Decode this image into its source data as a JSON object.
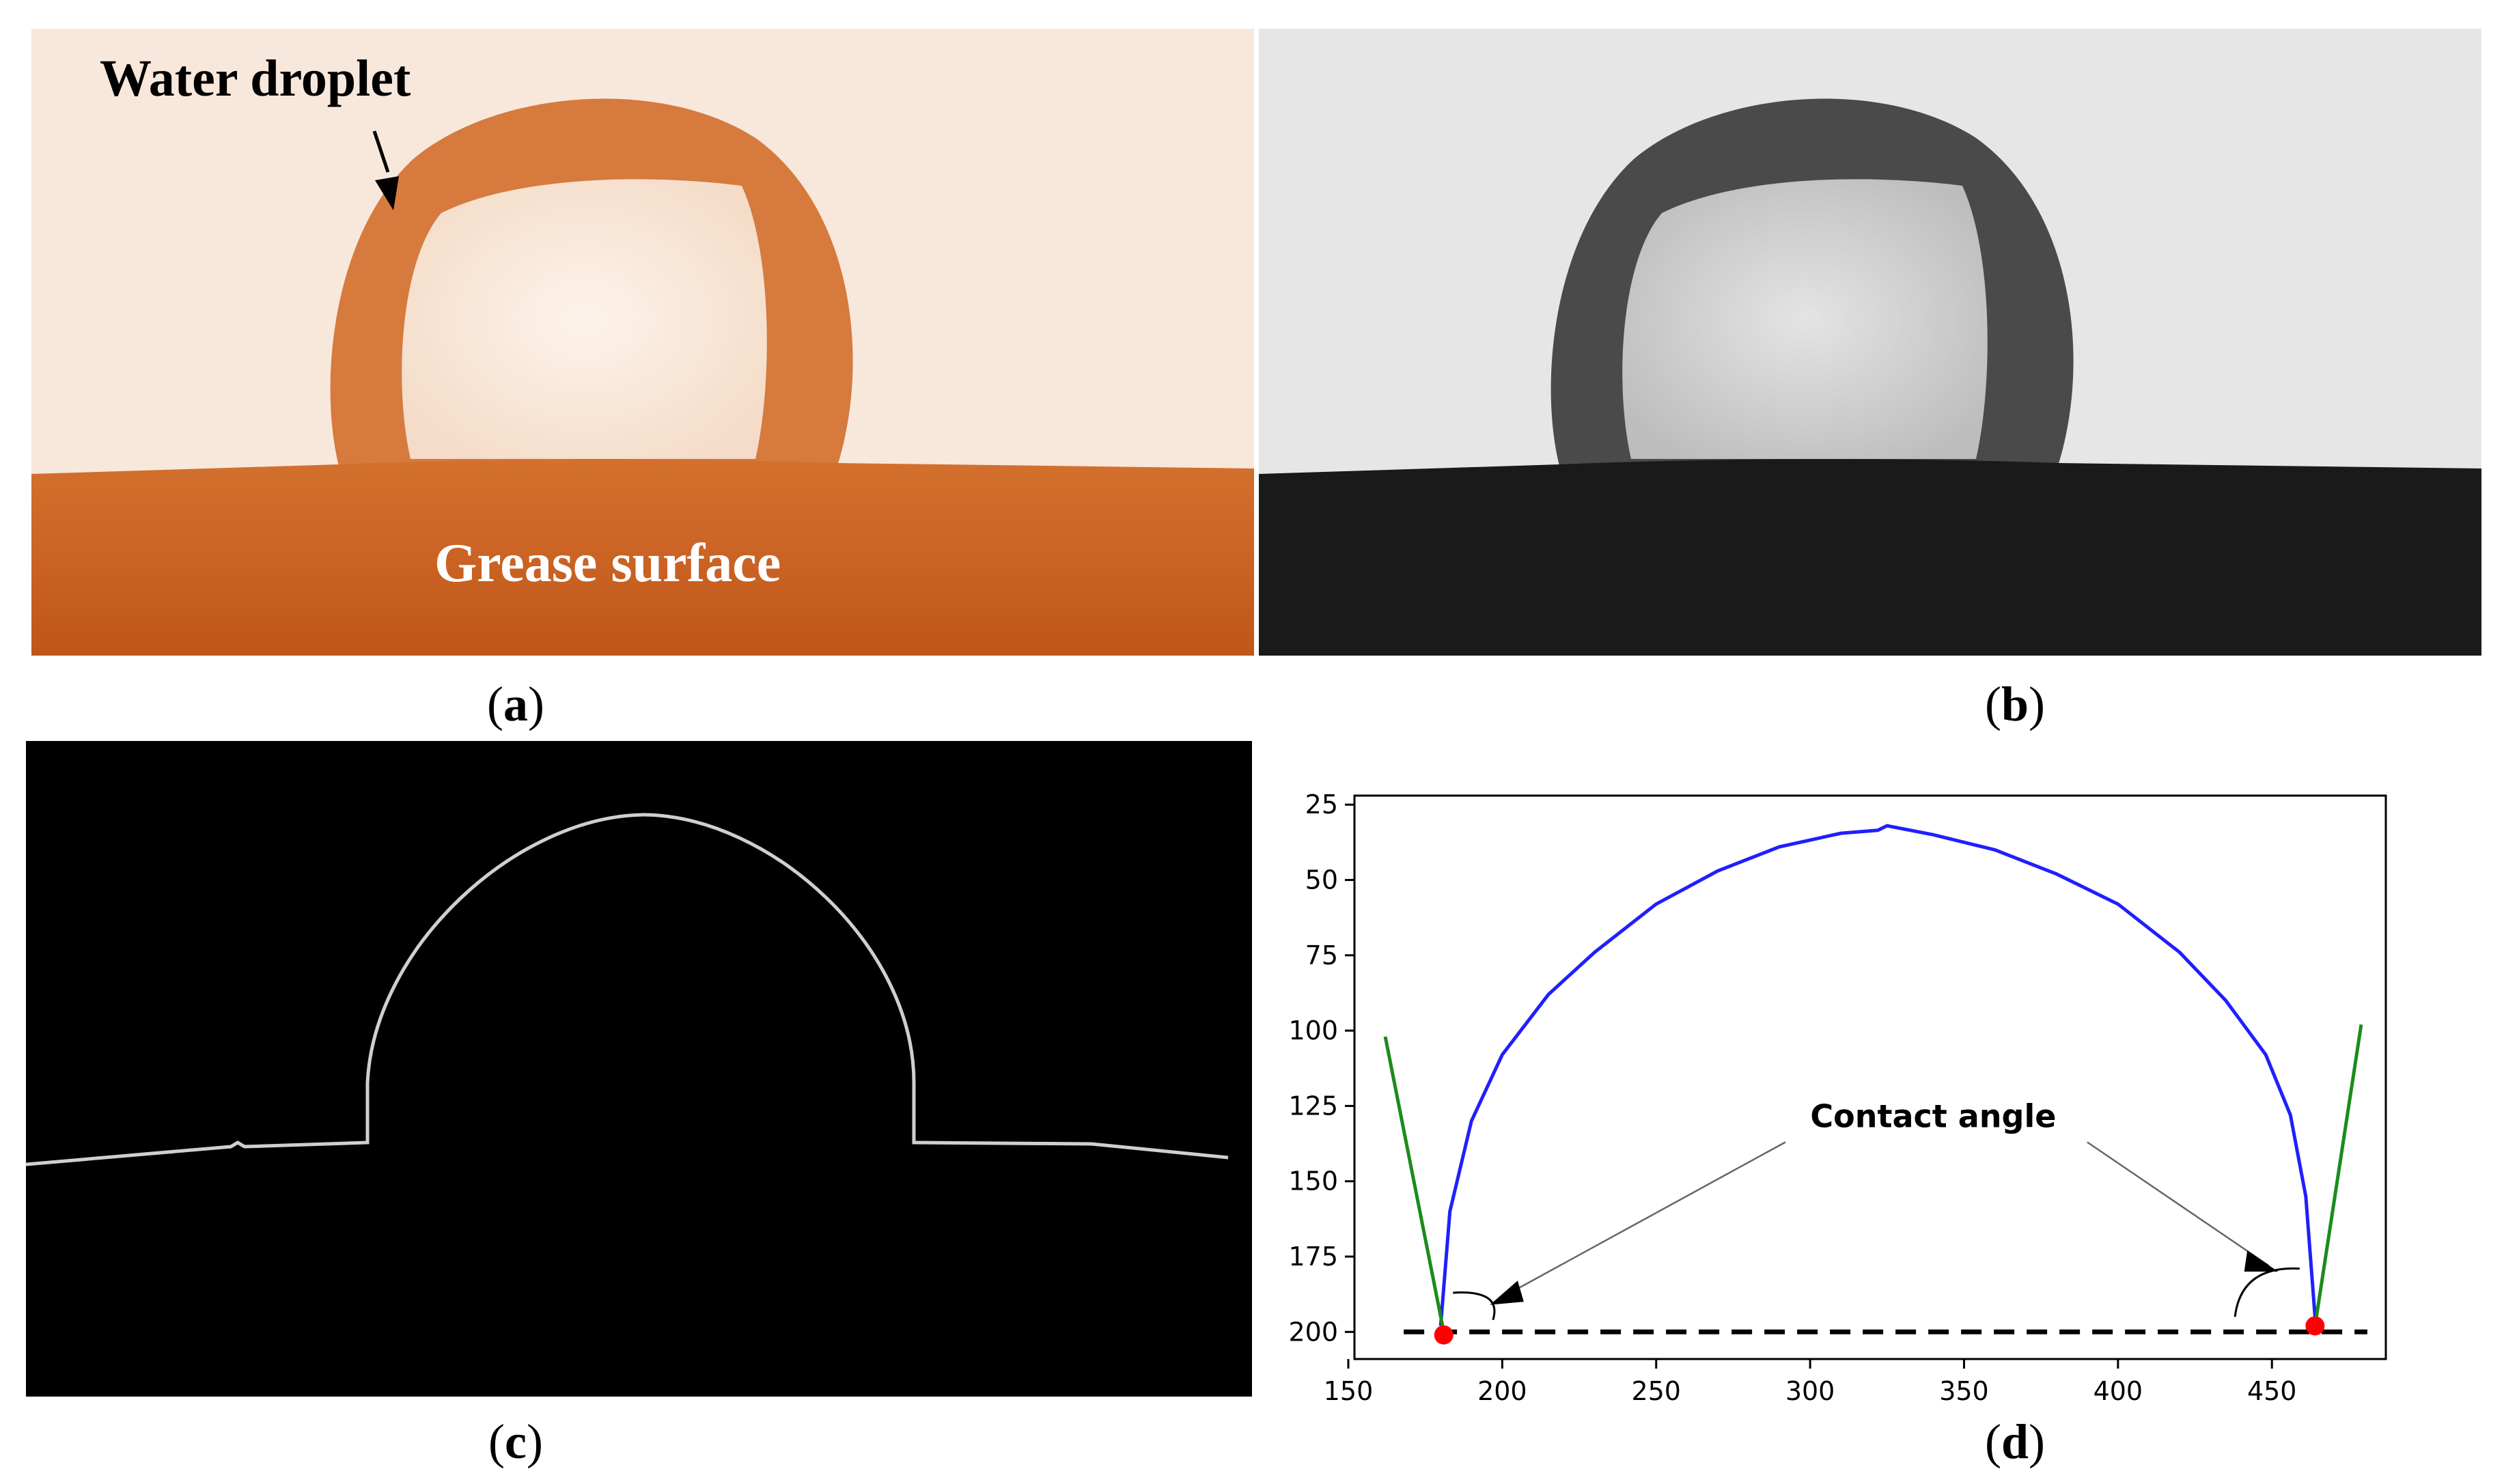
{
  "panels": {
    "a": {
      "caption_letter": "a",
      "droplet_label": "Water droplet",
      "surface_label": "Grease surface",
      "colors": {
        "background": "#f8e8dc",
        "grease": "#c55a18",
        "droplet": "#d67a3e"
      }
    },
    "b": {
      "caption_letter": "b",
      "colors": {
        "background": "#e6e6e6",
        "surface": "#1a1a1a",
        "droplet": "#4a4a4a"
      }
    },
    "c": {
      "caption_letter": "c",
      "colors": {
        "background": "#000000",
        "edge": "#cfcfcf"
      }
    },
    "d": {
      "caption_letter": "d",
      "annotation": "Contact angle"
    }
  },
  "chart_data": {
    "type": "line",
    "title": "",
    "xlabel": "",
    "ylabel": "",
    "xlim": [
      152,
      487
    ],
    "ylim": [
      209,
      22
    ],
    "y_inverted": true,
    "x_ticks": [
      150,
      200,
      250,
      300,
      350,
      400,
      450
    ],
    "y_ticks": [
      25,
      50,
      75,
      100,
      125,
      150,
      175,
      200
    ],
    "grid": false,
    "series": [
      {
        "kind": "droplet-profile",
        "color": "#1f1fff",
        "x": [
          180,
          183,
          190,
          200,
          215,
          230,
          250,
          270,
          290,
          310,
          322,
          325,
          340,
          360,
          380,
          400,
          420,
          435,
          448,
          456,
          461,
          464
        ],
        "y": [
          198,
          160,
          130,
          108,
          88,
          74,
          58,
          47,
          39,
          34.5,
          33.5,
          32,
          35,
          40,
          48,
          58,
          74,
          90,
          108,
          128,
          155,
          195
        ]
      },
      {
        "kind": "left-tangent",
        "color": "#1a8c1a",
        "x": [
          162,
          181
        ],
        "y": [
          102,
          200
        ]
      },
      {
        "kind": "right-tangent",
        "color": "#1a8c1a",
        "x": [
          464,
          479
        ],
        "y": [
          198,
          98
        ]
      },
      {
        "kind": "baseline",
        "color": "#000000",
        "dashed": true,
        "x": [
          168,
          481
        ],
        "y": [
          200,
          200
        ]
      },
      {
        "kind": "contact-points",
        "color": "#ff0000",
        "x": [
          181,
          464
        ],
        "y": [
          201,
          198
        ]
      }
    ]
  }
}
